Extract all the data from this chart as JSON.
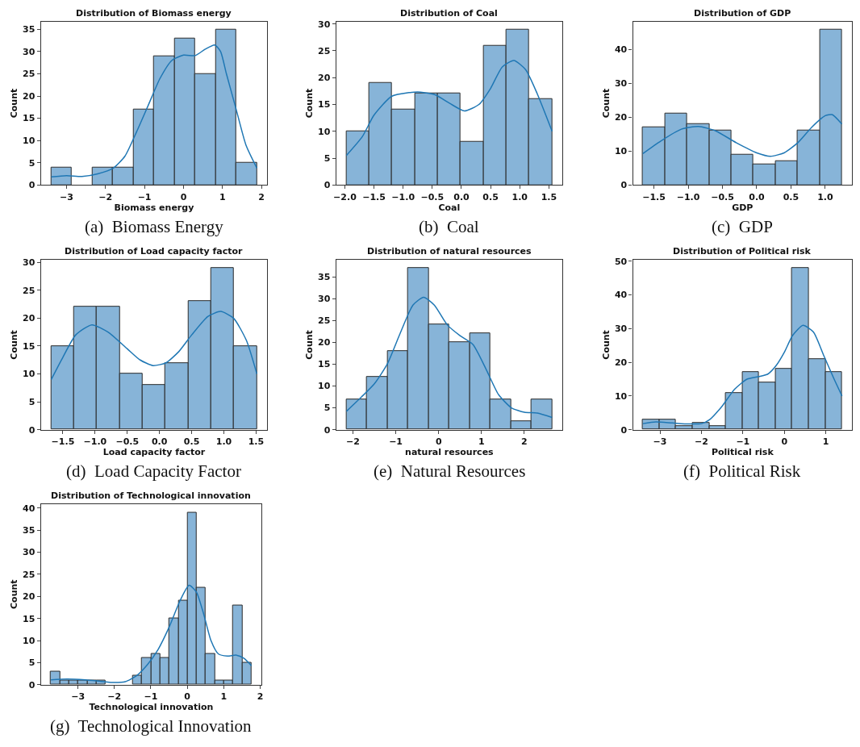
{
  "chart_data": [
    {
      "type": "histogram",
      "title": "Distribution of Biomass energy",
      "xlabel": "Biomass energy",
      "ylabel": "Count",
      "annotations": [
        "(a)  Biomass Energy"
      ],
      "xlim": [
        -3.654,
        2.144
      ],
      "ylim": [
        0,
        36.75
      ],
      "xticks": [
        {
          "value": -3,
          "label": "−3"
        },
        {
          "value": -2,
          "label": "−2"
        },
        {
          "value": -1,
          "label": "−1"
        },
        0,
        1,
        2
      ],
      "yticks": [
        0,
        5,
        10,
        15,
        20,
        25,
        30,
        35
      ],
      "series": [
        {
          "type": "histogram",
          "color": "#87b4d8",
          "bins": [
            -3.39,
            -2.863,
            -2.336,
            -1.809,
            -1.282,
            -0.755,
            -0.228,
            0.299,
            0.826,
            1.353,
            1.88
          ],
          "values": [
            4,
            0,
            4,
            4,
            17,
            29,
            33,
            25,
            35,
            5
          ]
        },
        {
          "type": "line",
          "color": "#1f77b4",
          "x": [
            -3.39,
            -3.0,
            -2.6,
            -2.2,
            -1.8,
            -1.5,
            -1.2,
            -0.9,
            -0.6,
            -0.3,
            0.0,
            0.3,
            0.55,
            0.8,
            0.95,
            1.1,
            1.35,
            1.6,
            1.88
          ],
          "values": [
            1.8,
            2.1,
            1.9,
            2.5,
            3.8,
            6.5,
            12,
            18,
            24,
            28,
            29.2,
            29.1,
            30.5,
            31.5,
            30,
            25,
            17,
            9,
            3.8
          ]
        }
      ]
    },
    {
      "type": "histogram",
      "title": "Distribution of Coal",
      "xlabel": "Coal",
      "ylabel": "Count",
      "annotations": [
        "(b)  Coal"
      ],
      "xlim": [
        -2.149,
        1.731
      ],
      "ylim": [
        0,
        30.45
      ],
      "xticks": [
        {
          "value": -2,
          "label": "−2.0"
        },
        {
          "value": -1.5,
          "label": "−1.5"
        },
        {
          "value": -1,
          "label": "−1.0"
        },
        {
          "value": -0.5,
          "label": "−0.5"
        },
        {
          "value": 0,
          "label": "0.0"
        },
        0.5,
        {
          "value": 1,
          "label": "1.0"
        },
        1.5
      ],
      "yticks": [
        0,
        5,
        10,
        15,
        20,
        25,
        30
      ],
      "series": [
        {
          "type": "histogram",
          "color": "#87b4d8",
          "bins": [
            -1.973,
            -1.581,
            -1.189,
            -0.797,
            -0.405,
            -0.013,
            0.379,
            0.771,
            1.163,
            1.555
          ],
          "values": [
            10,
            19,
            14,
            17,
            17,
            8,
            26,
            29,
            16
          ]
        },
        {
          "type": "line",
          "color": "#1f77b4",
          "x": [
            -1.973,
            -1.7,
            -1.5,
            -1.2,
            -0.9,
            -0.7,
            -0.45,
            -0.2,
            0.05,
            0.3,
            0.5,
            0.7,
            0.9,
            1.1,
            1.3,
            1.555
          ],
          "values": [
            5.5,
            9,
            13,
            16.5,
            17.2,
            17.3,
            16.8,
            15.2,
            13.8,
            15,
            18,
            22,
            23.2,
            21.5,
            17,
            10
          ]
        }
      ]
    },
    {
      "type": "histogram",
      "title": "Distribution of GDP",
      "xlabel": "GDP",
      "ylabel": "Count",
      "annotations": [
        "(c)  GDP"
      ],
      "xlim": [
        -1.806,
        1.39
      ],
      "ylim": [
        0,
        48.3
      ],
      "xticks": [
        {
          "value": -1.5,
          "label": "−1.5"
        },
        {
          "value": -1,
          "label": "−1.0"
        },
        {
          "value": -0.5,
          "label": "−0.5"
        },
        {
          "value": 0,
          "label": "0.0"
        },
        0.5,
        {
          "value": 1,
          "label": "1.0"
        }
      ],
      "yticks": [
        0,
        10,
        20,
        30,
        40
      ],
      "series": [
        {
          "type": "histogram",
          "color": "#87b4d8",
          "bins": [
            -1.661,
            -1.338,
            -1.016,
            -0.693,
            -0.371,
            -0.048,
            0.275,
            0.598,
            0.92,
            1.243
          ],
          "values": [
            17,
            21,
            18,
            16,
            9,
            6,
            7,
            16,
            46
          ]
        },
        {
          "type": "line",
          "color": "#1f77b4",
          "x": [
            -1.661,
            -1.4,
            -1.1,
            -0.85,
            -0.6,
            -0.3,
            0.0,
            0.2,
            0.4,
            0.6,
            0.8,
            1.0,
            1.1,
            1.243
          ],
          "values": [
            9.3,
            13,
            16.5,
            17.3,
            16,
            12.5,
            9.5,
            8.5,
            9.5,
            12.5,
            17,
            20.5,
            20.8,
            18
          ]
        }
      ]
    },
    {
      "type": "histogram",
      "title": "Distribution of Load capacity factor",
      "xlabel": "Load capacity factor",
      "ylabel": "Count",
      "annotations": [
        "(d)  Load Capacity Factor"
      ],
      "xlim": [
        -1.841,
        1.672
      ],
      "ylim": [
        0,
        30.45
      ],
      "xticks": [
        {
          "value": -1.5,
          "label": "−1.5"
        },
        {
          "value": -1,
          "label": "−1.0"
        },
        {
          "value": -0.5,
          "label": "−0.5"
        },
        {
          "value": 0,
          "label": "0.0"
        },
        0.5,
        {
          "value": 1,
          "label": "1.0"
        },
        1.5
      ],
      "yticks": [
        0,
        5,
        10,
        15,
        20,
        25,
        30
      ],
      "series": [
        {
          "type": "histogram",
          "color": "#87b4d8",
          "bins": [
            -1.681,
            -1.326,
            -0.971,
            -0.617,
            -0.262,
            0.093,
            0.448,
            0.803,
            1.157,
            1.512
          ],
          "values": [
            15,
            22,
            22,
            10,
            8,
            12,
            23,
            29,
            15
          ]
        },
        {
          "type": "line",
          "color": "#1f77b4",
          "x": [
            -1.681,
            -1.5,
            -1.3,
            -1.05,
            -0.8,
            -0.5,
            -0.3,
            -0.1,
            0.1,
            0.3,
            0.5,
            0.75,
            0.95,
            1.15,
            1.35,
            1.512
          ],
          "values": [
            9,
            13,
            17,
            18.8,
            17.5,
            14.5,
            12.5,
            11.5,
            12,
            14,
            17,
            20.3,
            21.2,
            20,
            16,
            10
          ]
        }
      ]
    },
    {
      "type": "histogram",
      "title": "Distribution of natural resources",
      "xlabel": "natural resources",
      "ylabel": "Count",
      "annotations": [
        "(e)  Natural Resources"
      ],
      "xlim": [
        -2.392,
        2.888
      ],
      "ylim": [
        0,
        38.85
      ],
      "xticks": [
        {
          "value": -2,
          "label": "−2"
        },
        {
          "value": -1,
          "label": "−1"
        },
        0,
        1,
        2
      ],
      "yticks": [
        0,
        5,
        10,
        15,
        20,
        25,
        30,
        35
      ],
      "series": [
        {
          "type": "histogram",
          "color": "#87b4d8",
          "bins": [
            -2.152,
            -1.672,
            -1.192,
            -0.712,
            -0.232,
            0.248,
            0.728,
            1.208,
            1.688,
            2.168,
            2.648
          ],
          "values": [
            7,
            12,
            18,
            37,
            24,
            20,
            22,
            7,
            2,
            7
          ]
        },
        {
          "type": "line",
          "color": "#1f77b4",
          "x": [
            -2.152,
            -1.8,
            -1.5,
            -1.2,
            -0.9,
            -0.6,
            -0.35,
            -0.1,
            0.2,
            0.5,
            0.8,
            1.1,
            1.4,
            1.7,
            2.0,
            2.3,
            2.648
          ],
          "values": [
            4.2,
            7.5,
            10.5,
            15,
            22,
            28.5,
            30.3,
            28.5,
            24,
            21.5,
            19.5,
            14,
            8,
            5,
            4,
            3.8,
            2.8
          ]
        }
      ]
    },
    {
      "type": "histogram",
      "title": "Distribution of Political risk",
      "xlabel": "Political risk",
      "ylabel": "Count",
      "annotations": [
        "(f)  Political Risk"
      ],
      "xlim": [
        -3.65,
        1.63
      ],
      "ylim": [
        0,
        50.4
      ],
      "xticks": [
        {
          "value": -3,
          "label": "−3"
        },
        {
          "value": -2,
          "label": "−2"
        },
        {
          "value": -1,
          "label": "−1"
        },
        0,
        1
      ],
      "yticks": [
        0,
        10,
        20,
        30,
        40,
        50
      ],
      "series": [
        {
          "type": "histogram",
          "color": "#87b4d8",
          "bins": [
            -3.41,
            -3.01,
            -2.61,
            -2.21,
            -1.81,
            -1.41,
            -1.01,
            -0.61,
            -0.21,
            0.19,
            0.59,
            0.99,
            1.39
          ],
          "values": [
            3,
            3,
            1,
            2,
            1,
            11,
            17,
            14,
            18,
            48,
            21,
            17
          ]
        },
        {
          "type": "line",
          "color": "#1f77b4",
          "x": [
            -3.41,
            -3.1,
            -2.7,
            -2.3,
            -2.0,
            -1.8,
            -1.5,
            -1.2,
            -0.9,
            -0.6,
            -0.4,
            -0.2,
            0.0,
            0.2,
            0.45,
            0.7,
            0.95,
            1.2,
            1.39
          ],
          "values": [
            1.8,
            2.3,
            2,
            1.7,
            1.8,
            3,
            7,
            12,
            15,
            15.8,
            16.5,
            19,
            23,
            28,
            31,
            29,
            22,
            15,
            10
          ]
        }
      ]
    },
    {
      "type": "histogram",
      "title": "Distribution of Technological innovation",
      "xlabel": "Technological innovation",
      "ylabel": "Count",
      "annotations": [
        "(g)  Technological Innovation"
      ],
      "xlim": [
        -4.016,
        2.038
      ],
      "ylim": [
        0,
        40.95
      ],
      "xticks": [
        {
          "value": -3,
          "label": "−3"
        },
        {
          "value": -2,
          "label": "−2"
        },
        {
          "value": -1,
          "label": "−1"
        },
        0,
        1,
        2
      ],
      "yticks": [
        0,
        5,
        10,
        15,
        20,
        25,
        30,
        35,
        40
      ],
      "series": [
        {
          "type": "histogram",
          "color": "#87b4d8",
          "bins": [
            -3.741,
            -3.491,
            -3.241,
            -2.991,
            -2.741,
            -2.491,
            -2.241,
            -1.991,
            -1.741,
            -1.491,
            -1.241,
            -0.991,
            -0.741,
            -0.491,
            -0.241,
            0.009,
            0.259,
            0.509,
            0.759,
            1.009,
            1.259,
            1.509,
            1.763
          ],
          "values": [
            3,
            1,
            1,
            1,
            1,
            1,
            0,
            0,
            0,
            2,
            6,
            7,
            6,
            15,
            19,
            39,
            22,
            7,
            1,
            1,
            18,
            5
          ]
        },
        {
          "type": "line",
          "color": "#1f77b4",
          "x": [
            -3.741,
            -3.3,
            -2.8,
            -2.4,
            -2.0,
            -1.7,
            -1.4,
            -1.1,
            -0.8,
            -0.5,
            -0.2,
            0.05,
            0.25,
            0.45,
            0.65,
            0.85,
            1.1,
            1.35,
            1.55,
            1.763
          ],
          "values": [
            1.1,
            1.3,
            1.1,
            0.8,
            0.5,
            0.7,
            2,
            4.5,
            8,
            13,
            19,
            22.5,
            21,
            16,
            10,
            7,
            6.5,
            6.7,
            6,
            4.3
          ]
        }
      ]
    }
  ]
}
